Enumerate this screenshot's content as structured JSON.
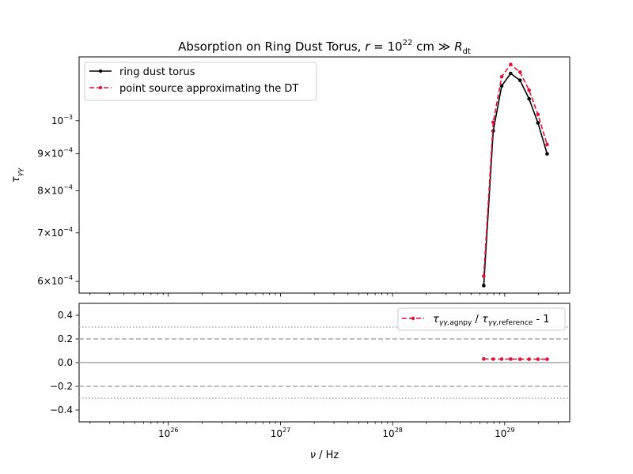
{
  "chart_data": [
    {
      "type": "line",
      "title": "Absorption on Ring Dust Torus, r = 10^22 cm ≫ R_dt",
      "xlabel": "ν / Hz",
      "ylabel": "τ_γγ",
      "xscale": "log",
      "yscale": "log",
      "xlim": [
        1.6e+25,
        3.8e+29
      ],
      "ylim": [
        0.000578,
        0.001225
      ],
      "xticks": [
        "10^26",
        "10^27",
        "10^28",
        "10^29"
      ],
      "yticks": [
        {
          "value": 0.001,
          "label": "10^-3"
        },
        {
          "value": 0.0009,
          "label": "9×10^-4"
        },
        {
          "value": 0.0008,
          "label": "8×10^-4"
        },
        {
          "value": 0.0007,
          "label": "7×10^-4"
        },
        {
          "value": 0.0006,
          "label": "6×10^-4"
        }
      ],
      "legend_position": "top-left",
      "series": [
        {
          "name": "ring dust torus",
          "color": "#000000",
          "style": "solid",
          "x": [
            6.5e+28,
            7.9e+28,
            9.4e+28,
            1.13e+29,
            1.37e+29,
            1.65e+29,
            1.98e+29,
            2.39e+29
          ],
          "y": [
            0.000592,
            0.000968,
            0.001117,
            0.001162,
            0.001137,
            0.001072,
            0.000993,
            0.0009
          ]
        },
        {
          "name": "point source approximating the DT",
          "color": "#dc143c",
          "style": "dashed",
          "x": [
            6.5e+28,
            7.9e+28,
            9.4e+28,
            1.13e+29,
            1.37e+29,
            1.65e+29,
            1.98e+29,
            2.39e+29
          ],
          "y": [
            0.00061,
            0.000995,
            0.00115,
            0.001196,
            0.001167,
            0.001102,
            0.00102,
            0.000927
          ]
        }
      ]
    },
    {
      "type": "line",
      "xlabel": "ν / Hz",
      "xscale": "log",
      "xlim": [
        1.6e+25,
        3.8e+29
      ],
      "ylim": [
        -0.5,
        0.5
      ],
      "yticks": [
        {
          "value": 0.4,
          "label": "0.4"
        },
        {
          "value": 0.2,
          "label": "0.2"
        },
        {
          "value": 0.0,
          "label": "0.0"
        },
        {
          "value": -0.2,
          "label": "−0.2"
        },
        {
          "value": -0.4,
          "label": "−0.4"
        }
      ],
      "reference_lines": [
        {
          "y": 0.0,
          "style": "solid"
        },
        {
          "y": 0.2,
          "style": "dashed"
        },
        {
          "y": -0.2,
          "style": "dashed"
        },
        {
          "y": 0.3,
          "style": "dotted"
        },
        {
          "y": -0.3,
          "style": "dotted"
        }
      ],
      "legend_position": "top-right",
      "series": [
        {
          "name": "τ_γγ,agnpy / τ_γγ,reference - 1",
          "color": "#dc143c",
          "style": "dashed",
          "x": [
            6.5e+28,
            7.9e+28,
            9.4e+28,
            1.13e+29,
            1.37e+29,
            1.65e+29,
            1.98e+29,
            2.39e+29
          ],
          "y": [
            0.031,
            0.03,
            0.03,
            0.03,
            0.029,
            0.029,
            0.029,
            0.029
          ]
        }
      ]
    }
  ]
}
